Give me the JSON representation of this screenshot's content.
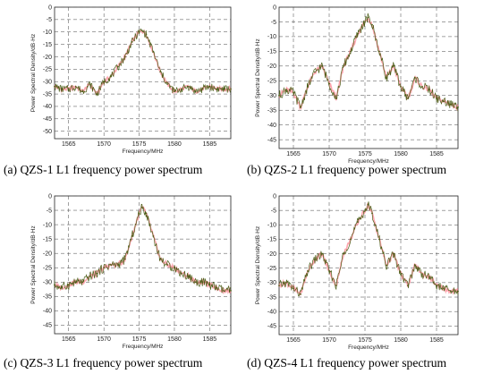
{
  "figure": {
    "captions": {
      "a": "(a) QZS-1 L1 frequency power spectrum",
      "b": "(b) QZS-2 L1 frequency power spectrum",
      "c": "(c) QZS-3 L1 frequency power spectrum",
      "d": "(d) QZS-4 L1 frequency power spectrum"
    }
  },
  "colors": {
    "measured": "#4b5e18",
    "smoothed": "#ff6a7a",
    "grid": "#444444"
  },
  "chart_data": [
    {
      "id": "a",
      "type": "line",
      "xlabel": "Frequency/MHz",
      "ylabel": "Power Spectral Density/dB·Hz",
      "xlim": [
        1563,
        1588
      ],
      "ylim": [
        -53,
        0
      ],
      "grid": true,
      "xticks": [
        1565,
        1570,
        1575,
        1580,
        1585
      ],
      "yticks": [
        0,
        -5,
        -10,
        -15,
        -20,
        -25,
        -30,
        -35,
        -40,
        -45,
        -50
      ],
      "series": [
        {
          "x": [
            1563,
            1564,
            1565,
            1566,
            1567,
            1568,
            1569,
            1570,
            1571,
            1572,
            1573,
            1574,
            1575,
            1575.42,
            1576,
            1577,
            1578,
            1579,
            1580,
            1581,
            1582,
            1583,
            1584,
            1585,
            1586,
            1587,
            1588
          ],
          "values": [
            -32,
            -33,
            -33,
            -32,
            -34,
            -31,
            -35,
            -30,
            -28,
            -24,
            -20,
            -14,
            -10,
            -9.5,
            -11,
            -18,
            -26,
            -31,
            -34,
            -33,
            -32,
            -34,
            -33,
            -32,
            -33,
            -33,
            -33
          ]
        }
      ]
    },
    {
      "id": "b",
      "type": "line",
      "xlabel": "Frequency/MHz",
      "ylabel": "Power Spectral Density/dB·Hz",
      "xlim": [
        1563,
        1588
      ],
      "ylim": [
        -48,
        0
      ],
      "grid": true,
      "xticks": [
        1565,
        1570,
        1575,
        1580,
        1585
      ],
      "yticks": [
        0,
        -5,
        -10,
        -15,
        -20,
        -25,
        -30,
        -35,
        -40,
        -45
      ],
      "series": [
        {
          "x": [
            1563,
            1564,
            1565,
            1566,
            1567,
            1568,
            1569,
            1570,
            1571,
            1572,
            1573,
            1574,
            1575,
            1575.42,
            1576,
            1577,
            1578,
            1579,
            1580,
            1581,
            1582,
            1583,
            1584,
            1585,
            1586,
            1587,
            1588
          ],
          "values": [
            -30,
            -28,
            -29,
            -34,
            -27,
            -22,
            -20,
            -26,
            -31,
            -20,
            -15,
            -9,
            -5,
            -3.5,
            -6,
            -15,
            -24,
            -20,
            -27,
            -31,
            -24,
            -27,
            -28,
            -31,
            -32,
            -33,
            -34
          ]
        }
      ]
    },
    {
      "id": "c",
      "type": "line",
      "xlabel": "Frequency/MHz",
      "ylabel": "Power Spectral Density/dB·Hz",
      "xlim": [
        1563,
        1588
      ],
      "ylim": [
        -48,
        0
      ],
      "grid": true,
      "xticks": [
        1565,
        1570,
        1575,
        1580,
        1585
      ],
      "yticks": [
        0,
        -5,
        -10,
        -15,
        -20,
        -25,
        -30,
        -35,
        -40,
        -45
      ],
      "series": [
        {
          "x": [
            1563,
            1564,
            1565,
            1566,
            1567,
            1568,
            1569,
            1570,
            1571,
            1572,
            1573,
            1574,
            1575,
            1575.42,
            1576,
            1577,
            1578,
            1579,
            1580,
            1581,
            1582,
            1583,
            1584,
            1585,
            1586,
            1587,
            1588
          ],
          "values": [
            -31,
            -32,
            -31,
            -30,
            -30,
            -28,
            -27,
            -25,
            -24,
            -24,
            -22,
            -14,
            -6,
            -4,
            -6,
            -14,
            -22,
            -24,
            -25,
            -27,
            -28,
            -30,
            -30,
            -31,
            -32,
            -33,
            -33
          ]
        }
      ]
    },
    {
      "id": "d",
      "type": "line",
      "xlabel": "Frequency/MHz",
      "ylabel": "Power Spectral Density/dB·Hz",
      "xlim": [
        1563,
        1588
      ],
      "ylim": [
        -48,
        0
      ],
      "grid": true,
      "xticks": [
        1565,
        1570,
        1575,
        1580,
        1585
      ],
      "yticks": [
        0,
        -5,
        -10,
        -15,
        -20,
        -25,
        -30,
        -35,
        -40,
        -45
      ],
      "series": [
        {
          "x": [
            1563,
            1564,
            1565,
            1566,
            1567,
            1568,
            1569,
            1570,
            1571,
            1572,
            1573,
            1574,
            1575,
            1575.42,
            1576,
            1577,
            1578,
            1579,
            1580,
            1581,
            1582,
            1583,
            1584,
            1585,
            1586,
            1587,
            1588
          ],
          "values": [
            -31,
            -30,
            -32,
            -34,
            -26,
            -22,
            -20,
            -26,
            -31,
            -20,
            -15,
            -9,
            -5,
            -3,
            -6,
            -15,
            -24,
            -20,
            -27,
            -31,
            -24,
            -27,
            -28,
            -31,
            -32,
            -33,
            -33
          ]
        }
      ]
    }
  ]
}
